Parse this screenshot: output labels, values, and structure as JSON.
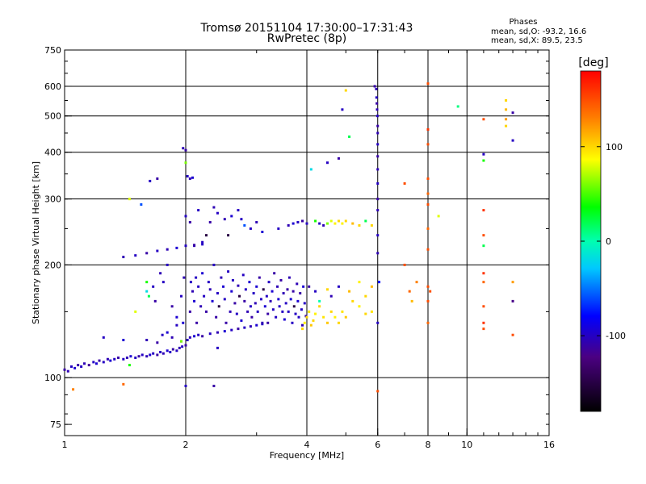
{
  "chart_data": {
    "type": "scatter",
    "title": "Tromsø 20151104 17:30:00–17:31:43",
    "subtitle": "RwPretec (8p)",
    "stats": {
      "heading": "Phases",
      "line_o": "mean, sd,O: -93.2, 16.6",
      "line_x": "mean, sd,X:  89.5, 23.5"
    },
    "xlabel": "Frequency [MHz]",
    "ylabel": "Stationary phase Virtual Height [km]",
    "x_scale": "log",
    "y_scale": "log",
    "xlim": [
      1,
      16
    ],
    "ylim": [
      70,
      750
    ],
    "x_ticks": [
      1,
      2,
      4,
      6,
      8,
      10,
      16
    ],
    "x_tick_labels": [
      "1",
      "2",
      "4",
      "6",
      "8",
      "10",
      "16"
    ],
    "x_gridlines": [
      2,
      4,
      6,
      8,
      10
    ],
    "y_ticks": [
      75,
      100,
      200,
      300,
      400,
      500,
      600,
      750
    ],
    "y_tick_labels": [
      "75",
      "100",
      "200",
      "300",
      "400",
      "500",
      "600",
      "750"
    ],
    "y_gridlines": [
      100,
      200,
      300,
      400,
      500,
      600
    ],
    "colorbar": {
      "label": "[deg]",
      "range": [
        -180,
        180
      ],
      "ticks": [
        100,
        0,
        -100
      ],
      "tick_labels": [
        "100",
        "0",
        "-100"
      ]
    },
    "points": [
      [
        1.0,
        105,
        -110
      ],
      [
        1.02,
        104,
        -105
      ],
      [
        1.04,
        107,
        -100
      ],
      [
        1.06,
        106,
        -95
      ],
      [
        1.08,
        108,
        -110
      ],
      [
        1.1,
        107,
        -100
      ],
      [
        1.12,
        109,
        -105
      ],
      [
        1.15,
        108,
        -115
      ],
      [
        1.18,
        110,
        -100
      ],
      [
        1.2,
        109,
        -95
      ],
      [
        1.22,
        111,
        -110
      ],
      [
        1.25,
        110,
        -100
      ],
      [
        1.28,
        112,
        -105
      ],
      [
        1.3,
        111,
        -95
      ],
      [
        1.33,
        112,
        -100
      ],
      [
        1.36,
        113,
        -110
      ],
      [
        1.4,
        112,
        -100
      ],
      [
        1.43,
        113,
        -105
      ],
      [
        1.46,
        114,
        -95
      ],
      [
        1.5,
        113,
        -100
      ],
      [
        1.53,
        114,
        -110
      ],
      [
        1.56,
        115,
        -100
      ],
      [
        1.6,
        114,
        -105
      ],
      [
        1.63,
        115,
        -95
      ],
      [
        1.66,
        116,
        -100
      ],
      [
        1.7,
        115,
        -110
      ],
      [
        1.73,
        117,
        -100
      ],
      [
        1.76,
        116,
        -105
      ],
      [
        1.8,
        118,
        -95
      ],
      [
        1.83,
        117,
        -100
      ],
      [
        1.86,
        119,
        -110
      ],
      [
        1.9,
        118,
        -100
      ],
      [
        1.93,
        120,
        -105
      ],
      [
        1.96,
        121,
        -100
      ],
      [
        2.0,
        122,
        -110
      ],
      [
        2.02,
        126,
        -100
      ],
      [
        2.05,
        128,
        -105
      ],
      [
        2.1,
        129,
        -95
      ],
      [
        2.15,
        130,
        -100
      ],
      [
        2.2,
        129,
        -110
      ],
      [
        2.3,
        131,
        -100
      ],
      [
        2.4,
        132,
        -105
      ],
      [
        2.5,
        133,
        -95
      ],
      [
        2.6,
        134,
        -100
      ],
      [
        2.7,
        135,
        -110
      ],
      [
        2.8,
        136,
        -100
      ],
      [
        2.9,
        137,
        -105
      ],
      [
        3.0,
        138,
        -95
      ],
      [
        3.1,
        139,
        -100
      ],
      [
        3.2,
        140,
        -110
      ],
      [
        1.25,
        128,
        -100
      ],
      [
        1.4,
        126,
        -95
      ],
      [
        1.6,
        126,
        -105
      ],
      [
        1.7,
        124,
        -110
      ],
      [
        1.75,
        130,
        -100
      ],
      [
        1.8,
        132,
        -95
      ],
      [
        1.85,
        128,
        -105
      ],
      [
        1.9,
        138,
        -100
      ],
      [
        1.95,
        125,
        -110
      ],
      [
        1.97,
        140,
        -95
      ],
      [
        1.6,
        170,
        -20
      ],
      [
        1.62,
        165,
        20
      ],
      [
        1.66,
        175,
        -100
      ],
      [
        1.68,
        160,
        -110
      ],
      [
        1.5,
        150,
        80
      ],
      [
        1.73,
        190,
        -105
      ],
      [
        1.76,
        180,
        -100
      ],
      [
        1.8,
        200,
        -100
      ],
      [
        1.85,
        155,
        -110
      ],
      [
        1.9,
        145,
        -95
      ],
      [
        1.95,
        165,
        -100
      ],
      [
        1.98,
        185,
        -105
      ],
      [
        2.05,
        150,
        -110
      ],
      [
        2.06,
        180,
        -100
      ],
      [
        2.08,
        170,
        -105
      ],
      [
        2.1,
        160,
        -95
      ],
      [
        2.12,
        185,
        -100
      ],
      [
        2.13,
        140,
        -110
      ],
      [
        2.15,
        175,
        -100
      ],
      [
        2.18,
        155,
        -105
      ],
      [
        2.2,
        190,
        -95
      ],
      [
        2.22,
        165,
        -100
      ],
      [
        2.25,
        150,
        -110
      ],
      [
        2.28,
        180,
        -100
      ],
      [
        2.3,
        172,
        -105
      ],
      [
        2.33,
        160,
        -95
      ],
      [
        2.35,
        200,
        -100
      ],
      [
        2.38,
        145,
        -110
      ],
      [
        2.4,
        168,
        -100
      ],
      [
        2.42,
        155,
        -150
      ],
      [
        2.45,
        185,
        -105
      ],
      [
        2.48,
        175,
        -95
      ],
      [
        2.5,
        162,
        -100
      ],
      [
        2.52,
        140,
        -110
      ],
      [
        2.55,
        192,
        -100
      ],
      [
        2.58,
        150,
        -105
      ],
      [
        2.6,
        170,
        -95
      ],
      [
        2.62,
        182,
        -100
      ],
      [
        2.65,
        158,
        -110
      ],
      [
        2.68,
        148,
        -100
      ],
      [
        2.7,
        176,
        -105
      ],
      [
        2.72,
        165,
        -150
      ],
      [
        2.75,
        142,
        -95
      ],
      [
        2.78,
        188,
        -100
      ],
      [
        2.8,
        160,
        -110
      ],
      [
        2.82,
        172,
        -100
      ],
      [
        2.85,
        150,
        -105
      ],
      [
        2.88,
        180,
        -95
      ],
      [
        2.9,
        155,
        -100
      ],
      [
        2.92,
        145,
        -110
      ],
      [
        2.95,
        168,
        -100
      ],
      [
        2.98,
        158,
        -105
      ],
      [
        3.0,
        175,
        -95
      ],
      [
        3.02,
        150,
        -100
      ],
      [
        3.05,
        185,
        -110
      ],
      [
        3.08,
        162,
        -100
      ],
      [
        3.1,
        140,
        -105
      ],
      [
        3.12,
        172,
        -150
      ],
      [
        3.15,
        155,
        -95
      ],
      [
        3.18,
        165,
        -100
      ],
      [
        3.2,
        148,
        -110
      ],
      [
        3.22,
        180,
        -100
      ],
      [
        3.25,
        160,
        -105
      ],
      [
        3.28,
        170,
        -95
      ],
      [
        3.3,
        152,
        -100
      ],
      [
        3.32,
        190,
        -110
      ],
      [
        3.35,
        145,
        -100
      ],
      [
        3.38,
        175,
        -105
      ],
      [
        3.4,
        162,
        -95
      ],
      [
        3.42,
        155,
        -100
      ],
      [
        3.45,
        182,
        -110
      ],
      [
        3.48,
        150,
        -100
      ],
      [
        3.5,
        168,
        -105
      ],
      [
        3.52,
        143,
        -95
      ],
      [
        3.55,
        158,
        -100
      ],
      [
        3.58,
        172,
        -110
      ],
      [
        3.6,
        150,
        -100
      ],
      [
        3.62,
        185,
        -105
      ],
      [
        3.65,
        162,
        -95
      ],
      [
        3.68,
        140,
        -100
      ],
      [
        3.7,
        170,
        -110
      ],
      [
        3.72,
        155,
        -150
      ],
      [
        3.75,
        148,
        -100
      ],
      [
        3.78,
        178,
        -105
      ],
      [
        3.8,
        160,
        -95
      ],
      [
        3.82,
        145,
        -100
      ],
      [
        3.85,
        168,
        -110
      ],
      [
        3.88,
        152,
        -100
      ],
      [
        3.9,
        138,
        -105
      ],
      [
        3.92,
        175,
        -95
      ],
      [
        3.95,
        158,
        -100
      ],
      [
        3.98,
        146,
        -110
      ],
      [
        2.2,
        230,
        -100
      ],
      [
        2.1,
        225,
        -105
      ],
      [
        2.25,
        240,
        -150
      ],
      [
        2.3,
        260,
        -110
      ],
      [
        2.4,
        275,
        -100
      ],
      [
        2.5,
        265,
        -105
      ],
      [
        2.6,
        270,
        -95
      ],
      [
        2.7,
        280,
        -100
      ],
      [
        2.8,
        255,
        -60
      ],
      [
        2.9,
        250,
        -100
      ],
      [
        3.0,
        260,
        -105
      ],
      [
        3.1,
        245,
        -95
      ],
      [
        2.15,
        280,
        -100
      ],
      [
        2.05,
        260,
        -110
      ],
      [
        2.0,
        270,
        -100
      ],
      [
        2.35,
        285,
        -105
      ],
      [
        2.55,
        240,
        -150
      ],
      [
        2.75,
        265,
        -100
      ],
      [
        1.4,
        210,
        -105
      ],
      [
        1.5,
        212,
        -100
      ],
      [
        1.6,
        215,
        -110
      ],
      [
        1.7,
        218,
        -100
      ],
      [
        1.8,
        220,
        -105
      ],
      [
        1.9,
        222,
        -95
      ],
      [
        2.0,
        225,
        -100
      ],
      [
        2.1,
        226,
        -110
      ],
      [
        2.2,
        227,
        -100
      ],
      [
        1.97,
        410,
        -105
      ],
      [
        2.0,
        405,
        -110
      ],
      [
        2.02,
        345,
        -100
      ],
      [
        2.05,
        340,
        -105
      ],
      [
        2.08,
        342,
        -95
      ],
      [
        1.63,
        335,
        -100
      ],
      [
        1.7,
        340,
        -110
      ],
      [
        2.0,
        375,
        60
      ],
      [
        2.0,
        95,
        -100
      ],
      [
        2.35,
        95,
        -110
      ],
      [
        3.4,
        250,
        -100
      ],
      [
        3.6,
        255,
        -105
      ],
      [
        3.7,
        258,
        -95
      ],
      [
        3.8,
        260,
        -100
      ],
      [
        3.9,
        262,
        -110
      ],
      [
        4.0,
        258,
        -100
      ],
      [
        4.2,
        262,
        40
      ],
      [
        4.3,
        258,
        -100
      ],
      [
        4.4,
        255,
        -105
      ],
      [
        4.5,
        258,
        60
      ],
      [
        4.6,
        262,
        80
      ],
      [
        4.7,
        258,
        90
      ],
      [
        4.8,
        262,
        100
      ],
      [
        4.9,
        258,
        90
      ],
      [
        5.0,
        262,
        100
      ],
      [
        5.2,
        258,
        110
      ],
      [
        5.4,
        255,
        100
      ],
      [
        5.6,
        262,
        20
      ],
      [
        5.8,
        255,
        100
      ],
      [
        3.9,
        135,
        100
      ],
      [
        3.95,
        140,
        90
      ],
      [
        4.0,
        145,
        100
      ],
      [
        4.05,
        150,
        95
      ],
      [
        4.1,
        138,
        105
      ],
      [
        4.15,
        142,
        100
      ],
      [
        4.2,
        148,
        90
      ],
      [
        4.3,
        155,
        100
      ],
      [
        4.4,
        145,
        95
      ],
      [
        4.5,
        140,
        105
      ],
      [
        4.6,
        150,
        100
      ],
      [
        4.7,
        145,
        90
      ],
      [
        4.8,
        140,
        100
      ],
      [
        4.9,
        150,
        95
      ],
      [
        5.0,
        145,
        105
      ],
      [
        5.2,
        160,
        100
      ],
      [
        5.4,
        155,
        90
      ],
      [
        5.6,
        148,
        100
      ],
      [
        5.8,
        150,
        95
      ],
      [
        4.05,
        175,
        -110
      ],
      [
        4.2,
        170,
        -100
      ],
      [
        4.3,
        160,
        0
      ],
      [
        4.5,
        172,
        100
      ],
      [
        4.6,
        165,
        -105
      ],
      [
        4.8,
        175,
        -100
      ],
      [
        5.1,
        170,
        110
      ],
      [
        5.4,
        180,
        90
      ],
      [
        5.6,
        165,
        100
      ],
      [
        5.8,
        175,
        110
      ],
      [
        4.1,
        360,
        -20
      ],
      [
        4.5,
        375,
        -100
      ],
      [
        4.8,
        385,
        -110
      ],
      [
        5.0,
        585,
        100
      ],
      [
        5.1,
        440,
        20
      ],
      [
        4.9,
        520,
        -100
      ],
      [
        5.9,
        600,
        -110
      ],
      [
        5.95,
        590,
        -105
      ],
      [
        5.96,
        560,
        -100
      ],
      [
        5.97,
        540,
        -110
      ],
      [
        5.98,
        520,
        -105
      ],
      [
        5.99,
        500,
        -100
      ],
      [
        6.0,
        470,
        -110
      ],
      [
        6.0,
        450,
        -105
      ],
      [
        6.0,
        420,
        -100
      ],
      [
        6.0,
        390,
        -110
      ],
      [
        6.0,
        360,
        -105
      ],
      [
        6.0,
        330,
        -100
      ],
      [
        6.0,
        300,
        -110
      ],
      [
        6.0,
        280,
        -105
      ],
      [
        6.0,
        240,
        -100
      ],
      [
        6.0,
        215,
        -105
      ],
      [
        6.0,
        140,
        -100
      ],
      [
        6.0,
        92,
        150
      ],
      [
        6.05,
        180,
        -80
      ],
      [
        7.0,
        330,
        150
      ],
      [
        7.0,
        200,
        150
      ],
      [
        7.2,
        170,
        140
      ],
      [
        7.5,
        180,
        130
      ],
      [
        7.3,
        160,
        110
      ],
      [
        8.0,
        610,
        150
      ],
      [
        8.0,
        460,
        160
      ],
      [
        8.0,
        420,
        150
      ],
      [
        8.0,
        340,
        150
      ],
      [
        8.0,
        310,
        140
      ],
      [
        8.0,
        290,
        150
      ],
      [
        8.0,
        250,
        140
      ],
      [
        8.0,
        220,
        150
      ],
      [
        8.0,
        175,
        150
      ],
      [
        8.0,
        160,
        150
      ],
      [
        8.0,
        140,
        140
      ],
      [
        8.1,
        170,
        150
      ],
      [
        8.5,
        270,
        80
      ],
      [
        9.5,
        530,
        10
      ],
      [
        11.0,
        490,
        150
      ],
      [
        11.0,
        395,
        -100
      ],
      [
        11.0,
        380,
        40
      ],
      [
        11.0,
        280,
        160
      ],
      [
        11.0,
        240,
        150
      ],
      [
        11.0,
        225,
        20
      ],
      [
        11.0,
        190,
        160
      ],
      [
        11.0,
        180,
        140
      ],
      [
        11.0,
        155,
        150
      ],
      [
        11.0,
        140,
        160
      ],
      [
        11.0,
        135,
        150
      ],
      [
        12.5,
        550,
        100
      ],
      [
        12.5,
        520,
        110
      ],
      [
        12.5,
        490,
        120
      ],
      [
        12.5,
        470,
        100
      ],
      [
        13.0,
        510,
        -110
      ],
      [
        13.0,
        430,
        -100
      ],
      [
        13.0,
        180,
        120
      ],
      [
        13.0,
        160,
        -120
      ],
      [
        13.0,
        130,
        150
      ],
      [
        1.05,
        93,
        130
      ],
      [
        1.4,
        96,
        140
      ],
      [
        1.45,
        108,
        40
      ],
      [
        1.55,
        290,
        -60
      ],
      [
        1.45,
        300,
        80
      ],
      [
        1.6,
        180,
        40
      ],
      [
        1.95,
        125,
        60
      ],
      [
        2.4,
        120,
        -100
      ]
    ]
  }
}
